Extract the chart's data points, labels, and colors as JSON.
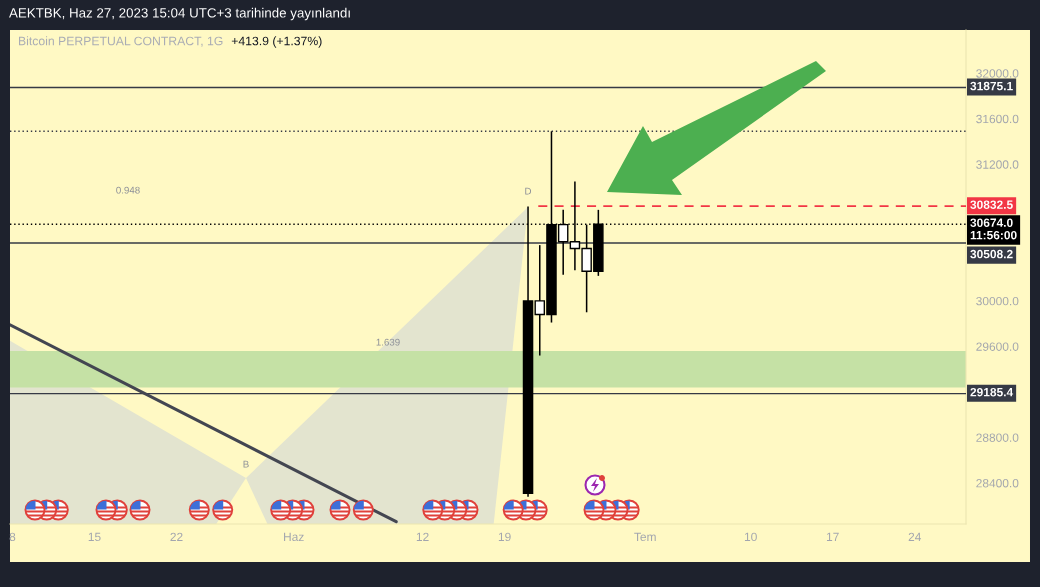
{
  "chart_data": {
    "type": "candlestick",
    "title": "Bitcoin PERPETUAL CONTRACT, 1G",
    "subtitle": "+413.9 (+1.37%)",
    "annotations": [
      "AEKTBK, Haz 27, 2023 15:04 UTC+3 tarihinde yayınlandı",
      "D",
      "B",
      "0.948",
      "1.639"
    ],
    "xlim": [
      "2023-05-07T19:00",
      "2023-07-28T09:00"
    ],
    "xticks": [
      {
        "value": "2023-05-08",
        "label": "8"
      },
      {
        "value": "2023-05-15",
        "label": "15"
      },
      {
        "value": "2023-05-22",
        "label": "22"
      },
      {
        "value": "2023-06-01",
        "label": "Haz"
      },
      {
        "value": "2023-06-12",
        "label": "12"
      },
      {
        "value": "2023-06-19",
        "label": "19"
      },
      {
        "value": "2023-07-01",
        "label": "Tem"
      },
      {
        "value": "2023-07-10",
        "label": "10"
      },
      {
        "value": "2023-07-17",
        "label": "17"
      },
      {
        "value": "2023-07-24",
        "label": "24"
      }
    ],
    "ylim": [
      28040,
      32380
    ],
    "yticks": [
      {
        "value": 28400,
        "label": "28400.0"
      },
      {
        "value": 28800,
        "label": "28800.0"
      },
      {
        "value": 29600,
        "label": "29600.0"
      },
      {
        "value": 30000,
        "label": "30000.0"
      },
      {
        "value": 31200,
        "label": "31200.0"
      },
      {
        "value": 31600,
        "label": "31600.0"
      },
      {
        "value": 32000,
        "label": "32000.0"
      }
    ],
    "series": [
      {
        "type": "line",
        "x": [
          "2023-05-07T19:00",
          "2023-06-09T18:00"
        ],
        "values": [
          29790,
          28060
        ],
        "color": "#434651"
      },
      {
        "type": "line",
        "x": [
          "2023-06-21T21:00",
          "2023-07-28T09:00"
        ],
        "values": [
          30832.5,
          30832.5
        ],
        "color": "#f23645",
        "line_style": "dashed",
        "value_labels": [
          null,
          "30832.5"
        ]
      },
      {
        "color": "#000000",
        "x": [
          "2023-06-21",
          "2023-06-22",
          "2023-06-23",
          "2023-06-24",
          "2023-06-25",
          "2023-06-26",
          "2023-06-27"
        ],
        "ohlc": [
          [
            28310,
            30830,
            28280,
            30000
          ],
          [
            30000,
            30490,
            29520,
            29880
          ],
          [
            29880,
            31490,
            29810,
            30670
          ],
          [
            30670,
            30800,
            30230,
            30520
          ],
          [
            30520,
            31050,
            30270,
            30460
          ],
          [
            30460,
            30670,
            29900,
            30260
          ],
          [
            30260,
            30800,
            30220,
            30674.0
          ]
        ],
        "colors": [
          "#000000",
          "#ffffff",
          "#000000",
          "#ffffff",
          "#ffffff",
          "#ffffff",
          "#000000"
        ]
      }
    ],
    "ref_lines": [
      {
        "axis": "y",
        "value": 31875.1,
        "label": "31875.1",
        "color": "#363a45",
        "line_style": "solid"
      },
      {
        "axis": "y",
        "value": 31490,
        "color": "#363a45",
        "line_style": "dotted"
      },
      {
        "axis": "y",
        "value": 30674.0,
        "label": "30674.0\n11:56:00",
        "color": "#000000",
        "line_style": "dotted"
      },
      {
        "axis": "y",
        "value": 30508.2,
        "label": "30508.2",
        "color": "#363a45",
        "line_style": "solid"
      },
      {
        "axis": "y",
        "value": 29185.4,
        "label": "29185.4",
        "color": "#363a45",
        "line_style": "solid"
      }
    ],
    "bands": [
      {
        "axis": "y",
        "from": 29240,
        "to": 29560,
        "color": "#c5e1a5"
      }
    ]
  }
}
